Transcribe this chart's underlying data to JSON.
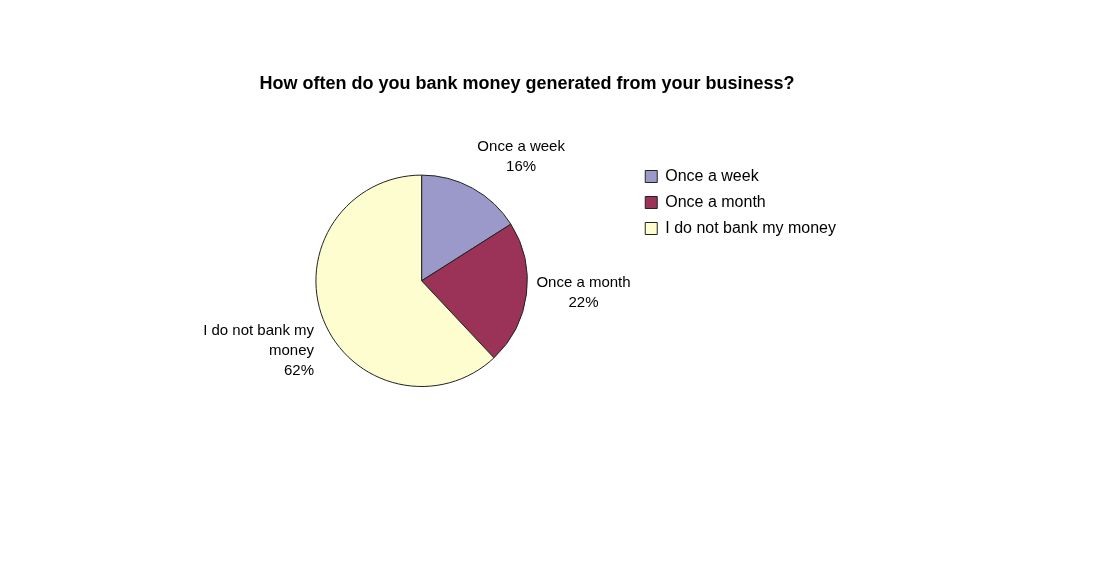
{
  "chart_data": {
    "type": "pie",
    "title": "How often do you bank money generated from your business?",
    "categories": [
      "Once a week",
      "Once a month",
      "I do not bank my money"
    ],
    "values": [
      16,
      22,
      62
    ],
    "colors": [
      "#9a99c9",
      "#9b3358",
      "#fdfdcf"
    ],
    "value_labels": [
      "16%",
      "22%",
      "62%"
    ],
    "legend": "right"
  }
}
